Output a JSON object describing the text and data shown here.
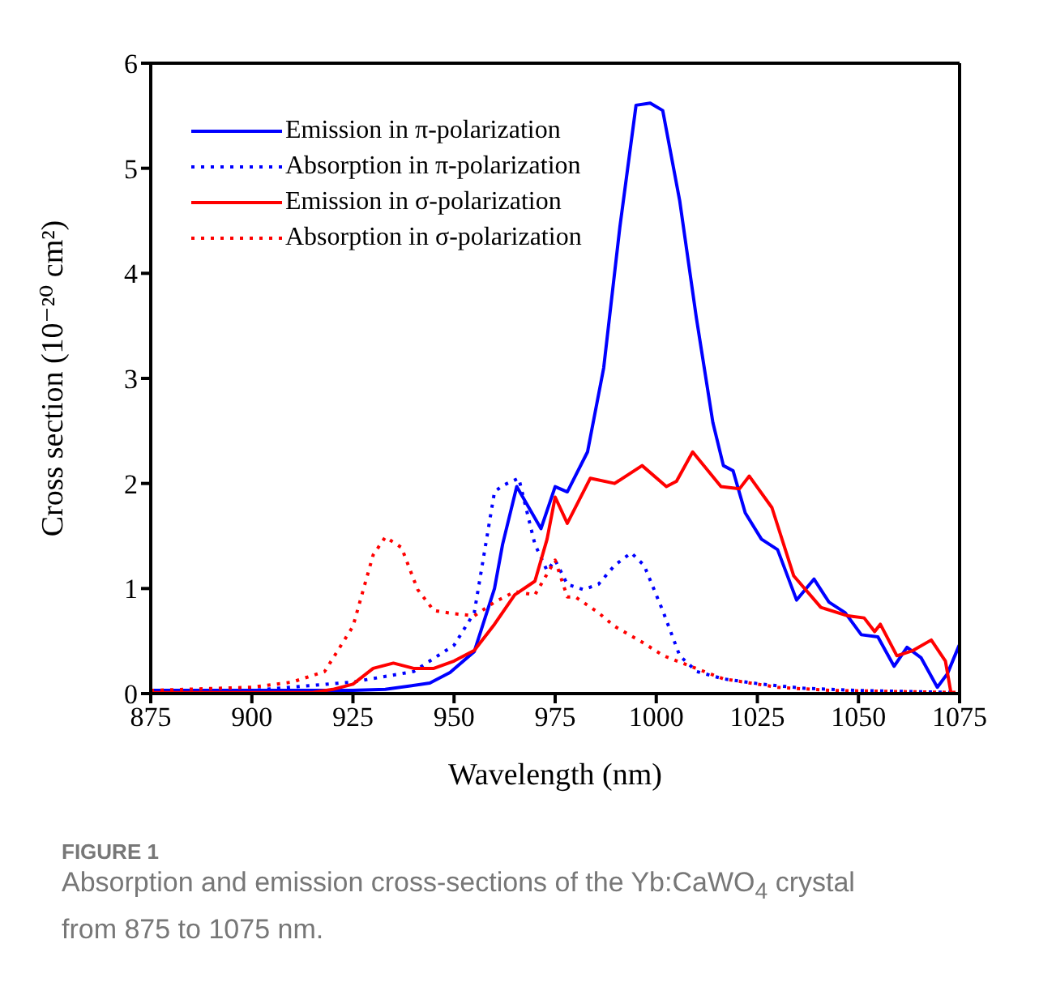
{
  "chart_data": {
    "type": "line",
    "xlabel": "Wavelength (nm)",
    "ylabel": "Cross section  (10⁻²⁰ cm²)",
    "xlim": [
      875,
      1075
    ],
    "ylim": [
      0,
      6
    ],
    "xticks": [
      875,
      900,
      925,
      950,
      975,
      1000,
      1025,
      1050,
      1075
    ],
    "yticks": [
      0,
      1,
      2,
      3,
      4,
      5,
      6
    ],
    "legend": "top left",
    "marker": "none",
    "annotations": [
      "FIGURE 1",
      "Absorption and emission cross-sections of the Yb:CaWO$_{4}$ crystal from 875 to 1075 nm."
    ],
    "series": [
      {
        "name": "Emission in π-polarization",
        "color": "#0000ff",
        "line_style": "solid",
        "x": [
          875,
          900,
          925,
          933,
          944,
          949,
          955,
          960,
          962,
          965.5,
          971.5,
          975,
          978,
          983,
          987,
          991,
          995,
          998.5,
          1001.6,
          1005.8,
          1009.9,
          1014,
          1016.6,
          1019,
          1022,
          1026,
          1030,
          1034.7,
          1039,
          1042.7,
          1046.7,
          1050.7,
          1054.8,
          1058.8,
          1062,
          1065.5,
          1069.5,
          1072,
          1074.9
        ],
        "values": [
          0.03,
          0.03,
          0.03,
          0.04,
          0.1,
          0.2,
          0.4,
          1.0,
          1.42,
          1.97,
          1.57,
          1.97,
          1.92,
          2.3,
          3.1,
          4.44,
          5.6,
          5.62,
          5.55,
          4.69,
          3.58,
          2.58,
          2.17,
          2.12,
          1.72,
          1.47,
          1.37,
          0.89,
          1.09,
          0.87,
          0.77,
          0.56,
          0.54,
          0.26,
          0.44,
          0.34,
          0.06,
          0.19,
          0.46
        ]
      },
      {
        "name": "Absorption in π-polarization",
        "color": "#0000ff",
        "line_style": "dotted",
        "x": [
          875,
          900,
          925,
          940,
          950,
          955,
          960,
          962,
          966,
          970,
          973,
          975,
          978,
          982,
          985.7,
          989.7,
          993.8,
          997,
          1001.8,
          1005.8,
          1010,
          1016.6,
          1026,
          1036.7,
          1050,
          1075
        ],
        "values": [
          0.03,
          0.03,
          0.11,
          0.21,
          0.46,
          0.77,
          1.92,
          1.98,
          2.05,
          1.42,
          1.17,
          1.27,
          1.04,
          0.99,
          1.04,
          1.22,
          1.34,
          1.22,
          0.77,
          0.36,
          0.21,
          0.14,
          0.09,
          0.05,
          0.03,
          0.01
        ]
      },
      {
        "name": "Emission in σ-polarization",
        "color": "#ff0000",
        "line_style": "solid",
        "x": [
          875,
          915,
          920,
          925,
          930,
          935,
          940,
          945,
          950,
          955,
          960,
          965,
          970,
          973,
          975,
          978,
          983.7,
          989.7,
          996.5,
          1002.5,
          1005,
          1009,
          1016,
          1020.6,
          1023,
          1028.6,
          1034,
          1040.7,
          1047.4,
          1051.4,
          1054,
          1055.4,
          1059.5,
          1063.5,
          1068,
          1071.5,
          1072.9,
          1075
        ],
        "values": [
          0.01,
          0.01,
          0.04,
          0.09,
          0.24,
          0.29,
          0.24,
          0.24,
          0.31,
          0.41,
          0.66,
          0.94,
          1.07,
          1.47,
          1.87,
          1.62,
          2.05,
          2.0,
          2.17,
          1.97,
          2.02,
          2.3,
          1.97,
          1.95,
          2.07,
          1.77,
          1.12,
          0.82,
          0.74,
          0.72,
          0.59,
          0.66,
          0.36,
          0.41,
          0.51,
          0.31,
          0,
          0
        ]
      },
      {
        "name": "Absorption in σ-polarization",
        "color": "#ff0000",
        "line_style": "dotted",
        "x": [
          875,
          900,
          910,
          918,
          925,
          930,
          933,
          937,
          941,
          945,
          950,
          955,
          960,
          965,
          970,
          975,
          978,
          980,
          985.7,
          989.7,
          996.5,
          1001.8,
          1008.5,
          1016.6,
          1030,
          1043,
          1075
        ],
        "values": [
          0.03,
          0.06,
          0.11,
          0.21,
          0.64,
          1.32,
          1.49,
          1.39,
          0.99,
          0.79,
          0.76,
          0.74,
          0.87,
          0.97,
          0.94,
          1.27,
          0.92,
          0.92,
          0.77,
          0.64,
          0.49,
          0.36,
          0.26,
          0.14,
          0.06,
          0.03,
          0.01
        ]
      }
    ]
  }
}
